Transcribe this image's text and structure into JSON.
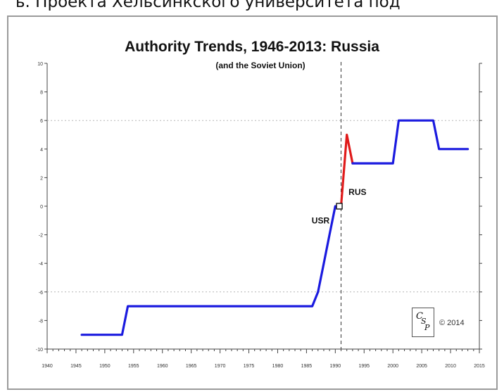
{
  "header_text": "ь. Проекта Хельсинкского университета под",
  "copyright_text": "© 2014",
  "logo": {
    "letters": [
      "C",
      "S",
      "P"
    ]
  },
  "colors": {
    "usr_line": "#1a1adf",
    "rus_line": "#e01b1b",
    "grid": "#b5b5b5",
    "axis": "#444444"
  },
  "chart_data": {
    "type": "line",
    "title": "Authority Trends, 1946-2013: Russia",
    "subtitle": "(and the Soviet Union)",
    "xlabel": "",
    "ylabel": "",
    "xlim": [
      1940,
      2015
    ],
    "ylim": [
      -10,
      10
    ],
    "x_ticks": [
      1940,
      1945,
      1950,
      1955,
      1960,
      1965,
      1970,
      1975,
      1980,
      1985,
      1990,
      1995,
      2000,
      2005,
      2010,
      2015
    ],
    "x_tick_labels": [
      "1940",
      "1945",
      "1950",
      "1955",
      "1960",
      "1965",
      "1970",
      "1975",
      "1980",
      "1985",
      "1990",
      "1995",
      "2000",
      "2005",
      "2010",
      "2015"
    ],
    "y_ticks": [
      10,
      8,
      6,
      4,
      2,
      0,
      -2,
      -4,
      -6,
      -8,
      -10
    ],
    "y_tick_labels": [
      "10",
      "8",
      "6",
      "4",
      "2",
      "0",
      "-2",
      "-4",
      "-6",
      "-8",
      "-10"
    ],
    "reference_lines": {
      "horizontal": [
        6,
        -6
      ],
      "vertical": [
        1991
      ]
    },
    "series": [
      {
        "name": "USR",
        "color": "#1a1adf",
        "points": [
          [
            1946,
            -9
          ],
          [
            1953,
            -9
          ],
          [
            1954,
            -7
          ],
          [
            1986,
            -7
          ],
          [
            1987,
            -6
          ],
          [
            1988,
            -4
          ],
          [
            1989,
            -2
          ],
          [
            1990,
            0
          ]
        ]
      },
      {
        "name": "RUS",
        "color": "#e01b1b",
        "points": [
          [
            1991,
            0
          ],
          [
            1992,
            5
          ],
          [
            1993,
            3
          ]
        ]
      },
      {
        "name": "",
        "color": "#1a1adf",
        "points": [
          [
            1993,
            3
          ],
          [
            2000,
            3
          ],
          [
            2001,
            6
          ],
          [
            2007,
            6
          ],
          [
            2008,
            4
          ],
          [
            2013,
            4
          ]
        ]
      }
    ],
    "marker": {
      "x": 1990.7,
      "y": 0
    },
    "annotations": [
      {
        "text": "USR",
        "x": 1989,
        "y": -1.2,
        "anchor": "end"
      },
      {
        "text": "RUS",
        "x": 1992.3,
        "y": 0.8,
        "anchor": "start"
      }
    ]
  }
}
